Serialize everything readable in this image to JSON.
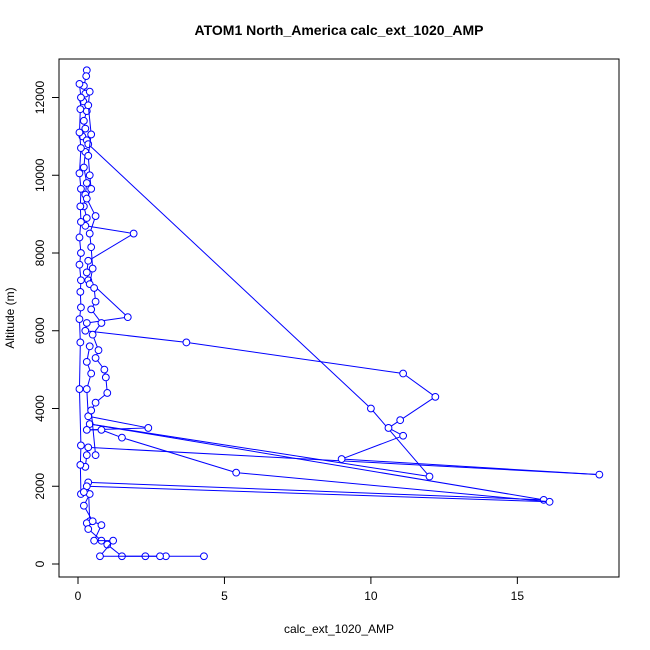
{
  "chart_data": {
    "type": "line",
    "title": "ATOM1 North_America calc_ext_1020_AMP",
    "xlabel": "calc_ext_1020_AMP",
    "ylabel": "Altitude (m)",
    "xlim": [
      0,
      18
    ],
    "ylim": [
      0,
      12700
    ],
    "x_ticks": [
      0,
      5,
      10,
      15
    ],
    "y_ticks": [
      0,
      2000,
      4000,
      6000,
      8000,
      10000,
      12000
    ],
    "grid": false,
    "legend": "none",
    "series": [
      {
        "color": "#0000ff",
        "marker": "open-circle",
        "points": [
          [
            0.3,
            12700
          ],
          [
            0.28,
            12550
          ],
          [
            0.2,
            12300
          ],
          [
            0.25,
            12100
          ],
          [
            0.18,
            11900
          ],
          [
            0.3,
            11650
          ],
          [
            0.2,
            11400
          ],
          [
            0.25,
            11200
          ],
          [
            0.15,
            11000
          ],
          [
            0.3,
            10900
          ],
          [
            0.35,
            10800
          ],
          [
            10.0,
            4000
          ],
          [
            12.0,
            2250
          ],
          [
            0.4,
            3600
          ],
          [
            15.9,
            1650
          ],
          [
            0.35,
            2100
          ],
          [
            0.4,
            1100
          ],
          [
            0.3,
            1050
          ],
          [
            0.35,
            900
          ],
          [
            0.8,
            600
          ],
          [
            1.0,
            500
          ],
          [
            1.5,
            200
          ],
          [
            2.3,
            200
          ],
          [
            4.3,
            200
          ]
        ]
      },
      {
        "color": "#0000ff",
        "marker": "open-circle",
        "points": [
          [
            0.25,
            10600
          ],
          [
            0.2,
            10200
          ],
          [
            0.3,
            9800
          ],
          [
            0.25,
            9500
          ],
          [
            0.2,
            9200
          ],
          [
            0.3,
            8900
          ],
          [
            0.25,
            8700
          ],
          [
            1.9,
            8500
          ],
          [
            0.35,
            7800
          ],
          [
            0.3,
            7500
          ],
          [
            0.35,
            7300
          ],
          [
            1.7,
            6350
          ],
          [
            0.3,
            6200
          ],
          [
            0.25,
            6000
          ],
          [
            3.7,
            5700
          ],
          [
            11.1,
            4900
          ],
          [
            12.2,
            4300
          ],
          [
            11.0,
            3700
          ],
          [
            10.6,
            3500
          ],
          [
            11.1,
            3300
          ],
          [
            9.0,
            2700
          ],
          [
            17.8,
            2300
          ],
          [
            0.35,
            3000
          ],
          [
            0.3,
            2800
          ],
          [
            0.25,
            2500
          ]
        ]
      },
      {
        "color": "#0000ff",
        "marker": "open-circle",
        "points": [
          [
            0.4,
            5600
          ],
          [
            0.3,
            5200
          ],
          [
            0.45,
            4900
          ],
          [
            0.3,
            4500
          ],
          [
            0.35,
            3800
          ],
          [
            2.4,
            3500
          ],
          [
            0.3,
            3450
          ],
          [
            0.8,
            3450
          ],
          [
            1.5,
            3250
          ],
          [
            5.4,
            2350
          ],
          [
            16.1,
            1600
          ],
          [
            0.3,
            2000
          ],
          [
            0.4,
            1800
          ],
          [
            0.2,
            1500
          ],
          [
            0.5,
            1100
          ],
          [
            0.8,
            1000
          ],
          [
            0.55,
            600
          ],
          [
            1.2,
            600
          ],
          [
            0.75,
            200
          ],
          [
            3.0,
            200
          ],
          [
            2.8,
            200
          ]
        ]
      },
      {
        "color": "#0000ff",
        "marker": "open-circle",
        "points": [
          [
            0.05,
            12350
          ],
          [
            0.1,
            12000
          ],
          [
            0.08,
            11700
          ],
          [
            0.05,
            11100
          ],
          [
            0.1,
            10700
          ],
          [
            0.05,
            10050
          ],
          [
            0.1,
            9650
          ],
          [
            0.08,
            9200
          ],
          [
            0.1,
            8800
          ],
          [
            0.05,
            8400
          ],
          [
            0.1,
            8000
          ],
          [
            0.05,
            7700
          ],
          [
            0.1,
            7300
          ],
          [
            0.08,
            7000
          ],
          [
            0.1,
            6600
          ],
          [
            0.05,
            6300
          ],
          [
            0.08,
            5700
          ],
          [
            0.05,
            4500
          ],
          [
            0.1,
            3050
          ],
          [
            0.08,
            2550
          ],
          [
            0.1,
            1800
          ],
          [
            0.2,
            1850
          ]
        ]
      },
      {
        "color": "#0000ff",
        "marker": "open-circle",
        "points": [
          [
            0.4,
            12150
          ],
          [
            0.35,
            11800
          ],
          [
            0.45,
            11050
          ],
          [
            0.35,
            10500
          ],
          [
            0.4,
            10000
          ],
          [
            0.45,
            9650
          ],
          [
            0.3,
            9400
          ],
          [
            0.6,
            8950
          ],
          [
            0.4,
            8500
          ],
          [
            0.45,
            8150
          ],
          [
            0.5,
            7600
          ],
          [
            0.4,
            7200
          ],
          [
            0.55,
            7100
          ],
          [
            0.6,
            6750
          ],
          [
            0.45,
            6550
          ],
          [
            0.8,
            6200
          ],
          [
            0.5,
            5900
          ],
          [
            0.7,
            5500
          ],
          [
            0.6,
            5300
          ],
          [
            0.9,
            5000
          ],
          [
            0.95,
            4800
          ],
          [
            1.0,
            4400
          ],
          [
            0.6,
            4150
          ],
          [
            0.45,
            3950
          ],
          [
            0.6,
            2800
          ]
        ]
      }
    ]
  }
}
